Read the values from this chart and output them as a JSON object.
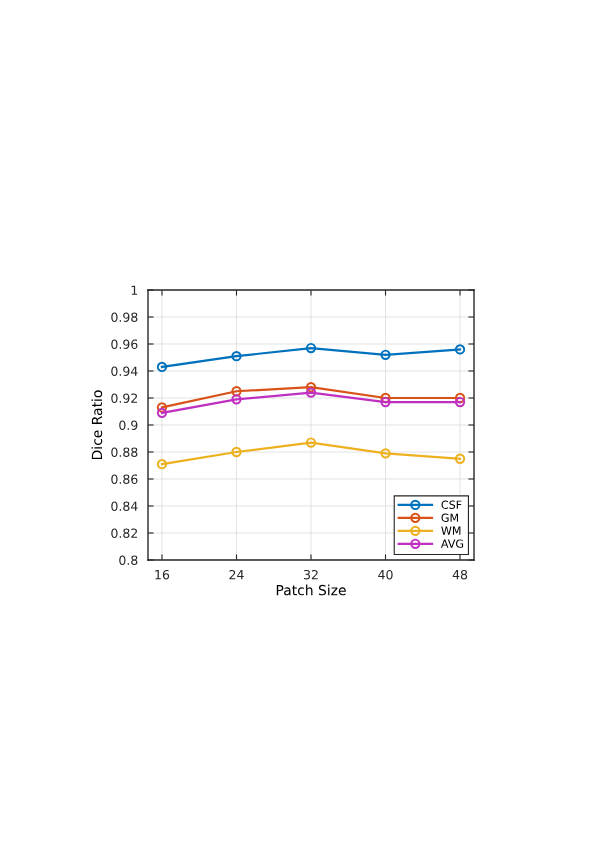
{
  "chart_data": {
    "type": "line",
    "xlabel": "Patch Size",
    "ylabel": "Dice Ratio",
    "x": [
      16,
      24,
      32,
      40,
      48
    ],
    "series": [
      {
        "name": "CSF",
        "color": "#0072bd",
        "values": [
          0.943,
          0.951,
          0.957,
          0.952,
          0.956
        ]
      },
      {
        "name": "GM",
        "color": "#d95319",
        "values": [
          0.913,
          0.925,
          0.928,
          0.92,
          0.92
        ]
      },
      {
        "name": "WM",
        "color": "#edb120",
        "values": [
          0.871,
          0.88,
          0.887,
          0.879,
          0.875
        ]
      },
      {
        "name": "AVG",
        "color": "#c030c0",
        "values": [
          0.909,
          0.919,
          0.924,
          0.917,
          0.917
        ]
      }
    ],
    "xlim": [
      14.5,
      49.5
    ],
    "xticks": [
      16,
      24,
      32,
      40,
      48
    ],
    "ylim": [
      0.8,
      1
    ],
    "yticks": [
      0.8,
      0.82,
      0.84,
      0.86,
      0.88,
      0.9,
      0.92,
      0.94,
      0.96,
      0.98,
      1
    ],
    "grid": true,
    "legend": "bottom right",
    "marker": "circle",
    "line_style": "solid"
  }
}
